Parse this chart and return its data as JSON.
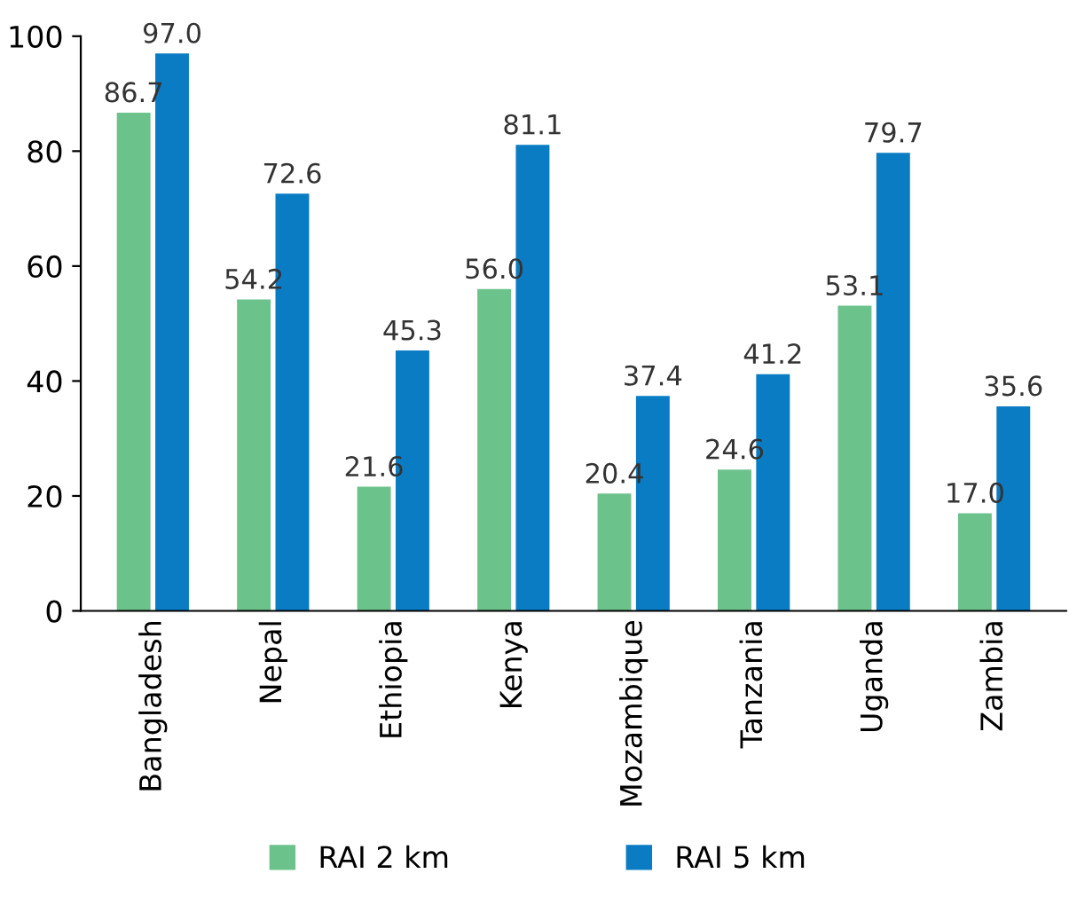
{
  "chart_data": {
    "type": "bar",
    "categories": [
      "Bangladesh",
      "Nepal",
      "Ethiopia",
      "Kenya",
      "Mozambique",
      "Tanzania",
      "Uganda",
      "Zambia"
    ],
    "series": [
      {
        "name": "RAI 2 km",
        "color": "#6cc28b",
        "values": [
          86.7,
          54.2,
          21.6,
          56.0,
          20.4,
          24.6,
          53.1,
          17.0
        ],
        "value_labels": [
          "86.7",
          "54.2",
          "21.6",
          "56.0",
          "20.4",
          "24.6",
          "53.1",
          "17.0"
        ]
      },
      {
        "name": "RAI 5 km",
        "color": "#0a7cc4",
        "values": [
          97.0,
          72.6,
          45.3,
          81.1,
          37.4,
          41.2,
          79.7,
          35.6
        ],
        "value_labels": [
          "97.0",
          "72.6",
          "45.3",
          "81.1",
          "37.4",
          "41.2",
          "79.7",
          "35.6"
        ]
      }
    ],
    "ylim": [
      0,
      100
    ],
    "yticks": [
      0,
      20,
      40,
      60,
      80,
      100
    ],
    "grid": false,
    "legend": "bottom"
  }
}
